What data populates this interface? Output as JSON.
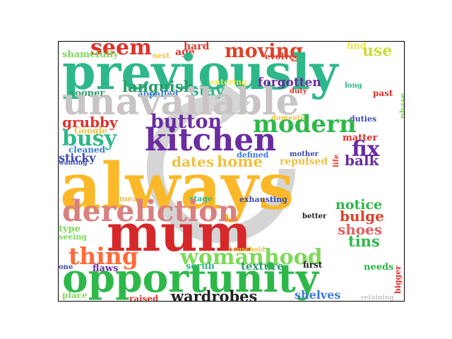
{
  "words": [
    {
      "t": "seem",
      "c": "#e0302a"
    },
    {
      "t": "hard",
      "c": "#d83a2c"
    },
    {
      "t": "moving",
      "c": "#e0402a"
    },
    {
      "t": "find",
      "c": "#e8e84a"
    },
    {
      "t": "use",
      "c": "#cddc39"
    },
    {
      "t": "shamefully",
      "c": "#7ed957"
    },
    {
      "t": "next",
      "c": "#f0c040"
    },
    {
      "t": "age",
      "c": "#e0302a"
    },
    {
      "t": "evolved",
      "c": "#d83a2c"
    },
    {
      "t": "previously",
      "c": "#2eb88a"
    },
    {
      "t": "phase",
      "c": "#7ed957"
    },
    {
      "t": "languish",
      "c": "#2a9d6a"
    },
    {
      "t": "entering",
      "c": "#e8e84a"
    },
    {
      "t": "forgotten",
      "c": "#6a2ca0"
    },
    {
      "t": "sooner",
      "c": "#2a9d6a"
    },
    {
      "t": "appalled",
      "c": "#3a7ad8"
    },
    {
      "t": "stay",
      "c": "#2eb88a"
    },
    {
      "t": "duty",
      "c": "#e0302a"
    },
    {
      "t": "long",
      "c": "#2eb88a"
    },
    {
      "t": "past",
      "c": "#e0302a"
    },
    {
      "t": "unavailable",
      "c": "#c8c4c4"
    },
    {
      "t": "domestic",
      "c": "#f0c040"
    },
    {
      "t": "duties",
      "c": "#3a4ab0"
    },
    {
      "t": "grubby",
      "c": "#e0302a"
    },
    {
      "t": "button",
      "c": "#6a2ca0"
    },
    {
      "t": "modern",
      "c": "#2eb84a"
    },
    {
      "t": "Google",
      "c": "#f0c040"
    },
    {
      "t": "busy",
      "c": "#2eb88a"
    },
    {
      "t": "kitchen",
      "c": "#6a2ca0"
    },
    {
      "t": "matter",
      "c": "#e0302a"
    },
    {
      "t": "life",
      "c": "#e0302a"
    },
    {
      "t": "cleaned",
      "c": "#3a7ad8"
    },
    {
      "t": "sticky",
      "c": "#3a4ab0"
    },
    {
      "t": "fix",
      "c": "#6a2ca0"
    },
    {
      "t": "wanting",
      "c": "#3a4ab0"
    },
    {
      "t": "defined",
      "c": "#3a7ad8"
    },
    {
      "t": "mother",
      "c": "#3a4ab0"
    },
    {
      "t": "dates",
      "c": "#f0c040"
    },
    {
      "t": "home",
      "c": "#f0c040"
    },
    {
      "t": "repulsed",
      "c": "#f0c040"
    },
    {
      "t": "balk",
      "c": "#6a2ca0"
    },
    {
      "t": "always",
      "c": "#fbb829"
    },
    {
      "t": "mean",
      "c": "#f0c040"
    },
    {
      "t": "stage",
      "c": "#2eb88a"
    },
    {
      "t": "exhausting",
      "c": "#3a4ab0"
    },
    {
      "t": "dereliction",
      "c": "#d88080"
    },
    {
      "t": "notice",
      "c": "#2eb84a"
    },
    {
      "t": "better",
      "c": "#222222"
    },
    {
      "t": "bulge",
      "c": "#e0402a"
    },
    {
      "t": "type",
      "c": "#7ed957"
    },
    {
      "t": "mum",
      "c": "#d6282a"
    },
    {
      "t": "shoes",
      "c": "#e06060"
    },
    {
      "t": "seeing",
      "c": "#7ed957"
    },
    {
      "t": "tins",
      "c": "#2eb84a"
    },
    {
      "t": "thing",
      "c": "#ff6a3a"
    },
    {
      "t": "household",
      "c": "#f0c040"
    },
    {
      "t": "womanhood",
      "c": "#7ed957"
    },
    {
      "t": "bigger",
      "c": "#e0302a"
    },
    {
      "t": "one",
      "c": "#3a4ab0"
    },
    {
      "t": "flaws",
      "c": "#6a2ca0"
    },
    {
      "t": "scrub",
      "c": "#2eb88a"
    },
    {
      "t": "texture",
      "c": "#2a9d6a"
    },
    {
      "t": "first",
      "c": "#222222"
    },
    {
      "t": "needs",
      "c": "#2eb84a"
    },
    {
      "t": "opportunity",
      "c": "#2eb84a"
    },
    {
      "t": "place",
      "c": "#7ed957"
    },
    {
      "t": "raised",
      "c": "#e0302a"
    },
    {
      "t": "wardrobes",
      "c": "#222222"
    },
    {
      "t": "shelves",
      "c": "#3a7ad8"
    },
    {
      "t": "retaining",
      "c": "#c8c4c4"
    }
  ]
}
